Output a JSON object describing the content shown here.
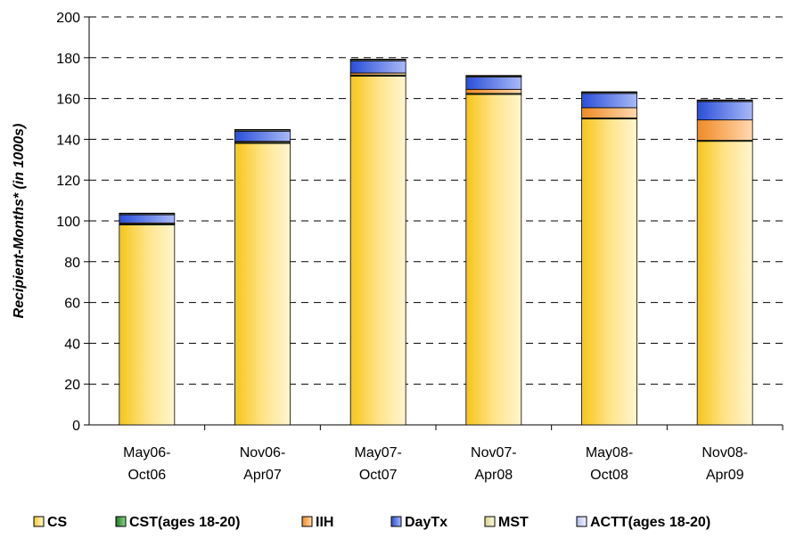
{
  "chart_data": {
    "type": "bar",
    "stacked": true,
    "ylabel": "Recipient-Months* (in 1000s)",
    "xlabel": "",
    "ylim": [
      0,
      200
    ],
    "yticks": [
      0,
      20,
      40,
      60,
      80,
      100,
      120,
      140,
      160,
      180,
      200
    ],
    "grid": "horizontal-dashed",
    "legend_position": "bottom",
    "categories": [
      [
        "May06-",
        "Oct06"
      ],
      [
        "Nov06-",
        "Apr07"
      ],
      [
        "May07-",
        "Oct07"
      ],
      [
        "Nov07-",
        "Apr08"
      ],
      [
        "May08-",
        "Oct08"
      ],
      [
        "Nov08-",
        "Apr09"
      ]
    ],
    "series": [
      {
        "name": "CS",
        "color": "#ffd966",
        "values": [
          98,
          138,
          171,
          162,
          150,
          139
        ]
      },
      {
        "name": "CST(ages 18-20)",
        "color": "#339933",
        "values": [
          0.5,
          0.5,
          0.5,
          0.5,
          0.5,
          0.5
        ]
      },
      {
        "name": "IIH",
        "color": "#f4a460",
        "values": [
          0.5,
          0.5,
          1,
          2,
          5,
          10
        ]
      },
      {
        "name": "DayTx",
        "color": "#4a6fe3",
        "values": [
          4,
          5,
          6,
          6,
          7,
          9
        ]
      },
      {
        "name": "MST",
        "color": "#f0eeb0",
        "values": [
          0.5,
          0.5,
          0.5,
          0.5,
          0.5,
          0.5
        ]
      },
      {
        "name": "ACTT(ages 18-20)",
        "color": "#c8d0f5",
        "values": [
          0.3,
          0.3,
          0.3,
          0.3,
          0.3,
          0.3
        ]
      }
    ]
  }
}
